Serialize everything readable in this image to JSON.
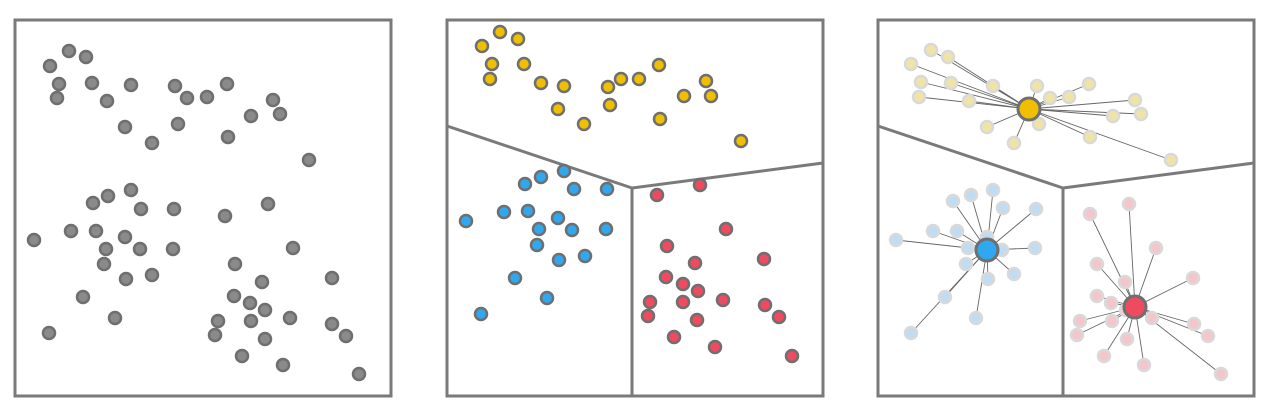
{
  "colors": {
    "border": "#7a7a7a",
    "unassigned": "#8a8a8a",
    "cluster_yellow": "#f0c000",
    "cluster_blue": "#30a8f0",
    "cluster_red": "#f04a60",
    "faded_yellow": "#efe3a6",
    "faded_blue": "#bfdcf2",
    "faded_red": "#f4c6cc",
    "faded_stroke": "#d9d9d9"
  },
  "panels": [
    {
      "name": "raw-points",
      "state": "unclustered"
    },
    {
      "name": "cluster-assignment",
      "state": "colored-by-cluster"
    },
    {
      "name": "centroids",
      "state": "centroid-connections"
    }
  ],
  "clusters": [
    "yellow",
    "blue",
    "red"
  ]
}
